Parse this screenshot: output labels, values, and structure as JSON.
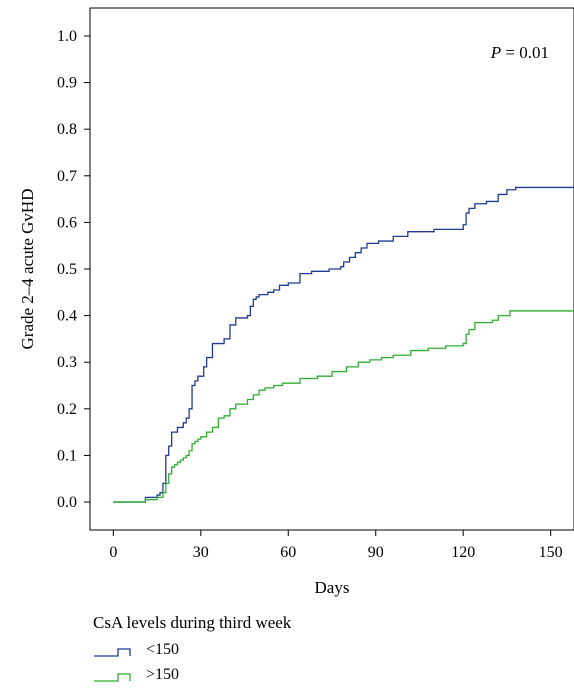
{
  "chart_data": {
    "type": "line",
    "step": true,
    "title": "",
    "xlabel": "Days",
    "ylabel": "Grade 2–4 acute GvHD",
    "xlim": [
      -8,
      158
    ],
    "ylim": [
      -0.06,
      1.06
    ],
    "xticks": [
      0,
      30,
      60,
      90,
      120,
      150
    ],
    "xtick_labels": [
      "0",
      "30",
      "60",
      "90",
      "120",
      "150"
    ],
    "yticks": [
      0.0,
      0.1,
      0.2,
      0.3,
      0.4,
      0.5,
      0.6,
      0.7,
      0.8,
      0.9,
      1.0
    ],
    "ytick_labels": [
      "0.0",
      "0.1",
      "0.2",
      "0.3",
      "0.4",
      "0.5",
      "0.6",
      "0.7",
      "0.8",
      "0.9",
      "1.0"
    ],
    "grid": false,
    "annotation": {
      "p_label": "P",
      "p_value_text": " = 0.01",
      "position": "top-right"
    },
    "legend": {
      "title": "CsA levels during third week",
      "position": "bottom-left"
    },
    "series": [
      {
        "name": "<150",
        "color": "#1f3a93",
        "x": [
          0,
          11,
          15,
          16,
          17,
          18,
          19,
          20,
          21,
          22,
          23,
          24,
          25,
          26,
          27,
          28,
          29,
          30,
          31,
          32,
          34,
          36,
          38,
          40,
          42,
          44,
          46,
          47,
          48,
          49,
          50,
          53,
          55,
          57,
          60,
          64,
          68,
          74,
          78,
          79,
          81,
          83,
          85,
          87,
          91,
          96,
          101,
          110,
          120,
          121,
          122,
          124,
          128,
          132,
          135,
          138,
          158
        ],
        "y": [
          0.0,
          0.01,
          0.015,
          0.02,
          0.04,
          0.1,
          0.12,
          0.15,
          0.15,
          0.16,
          0.16,
          0.17,
          0.18,
          0.2,
          0.25,
          0.26,
          0.27,
          0.27,
          0.29,
          0.31,
          0.34,
          0.34,
          0.35,
          0.38,
          0.395,
          0.395,
          0.4,
          0.42,
          0.435,
          0.44,
          0.445,
          0.45,
          0.455,
          0.465,
          0.47,
          0.49,
          0.495,
          0.5,
          0.505,
          0.515,
          0.525,
          0.535,
          0.545,
          0.555,
          0.56,
          0.57,
          0.58,
          0.585,
          0.595,
          0.62,
          0.63,
          0.64,
          0.645,
          0.66,
          0.67,
          0.675,
          0.675
        ]
      },
      {
        "name": ">150",
        "color": "#2fae2f",
        "x": [
          0,
          11,
          15,
          17,
          18,
          19,
          20,
          21,
          22,
          23,
          24,
          25,
          26,
          27,
          28,
          29,
          30,
          32,
          34,
          36,
          38,
          40,
          42,
          46,
          48,
          50,
          52,
          55,
          58,
          64,
          70,
          75,
          80,
          84,
          88,
          92,
          96,
          102,
          108,
          114,
          120,
          121,
          122,
          124,
          130,
          132,
          136,
          158
        ],
        "y": [
          0.0,
          0.005,
          0.01,
          0.02,
          0.04,
          0.06,
          0.075,
          0.08,
          0.085,
          0.09,
          0.095,
          0.1,
          0.11,
          0.125,
          0.13,
          0.135,
          0.14,
          0.15,
          0.16,
          0.18,
          0.185,
          0.2,
          0.21,
          0.22,
          0.23,
          0.24,
          0.245,
          0.25,
          0.255,
          0.265,
          0.27,
          0.28,
          0.29,
          0.3,
          0.305,
          0.31,
          0.315,
          0.325,
          0.33,
          0.335,
          0.34,
          0.36,
          0.37,
          0.385,
          0.39,
          0.4,
          0.41,
          0.41
        ]
      }
    ]
  }
}
